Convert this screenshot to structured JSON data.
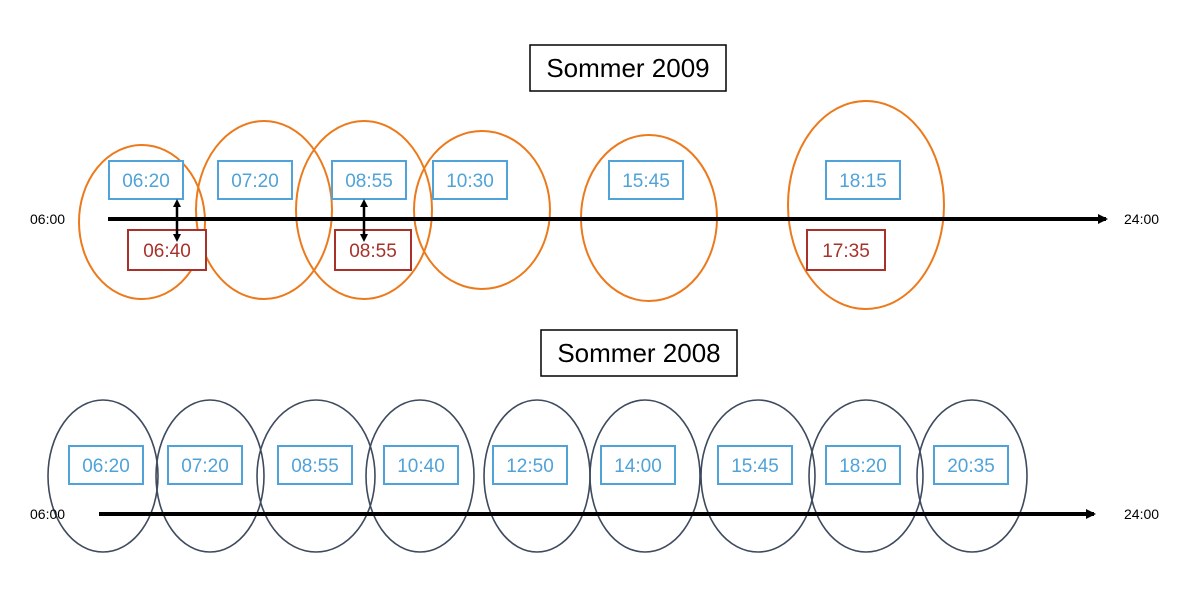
{
  "colors": {
    "orange_ellipse": "#ec7a1c",
    "navy_ellipse": "#3e4a5e",
    "blue_box": "#4fa3d9",
    "red_box": "#a8322a",
    "axis": "#000000"
  },
  "icons": {
    "axis_arrow": "arrow-right-icon",
    "link_arrow": "double-arrow-vertical-icon"
  },
  "timeline_2009": {
    "title": "Sommer 2009",
    "start_label": "06:00",
    "end_label": "24:00",
    "scheduled": [
      "06:20",
      "07:20",
      "08:55",
      "10:30",
      "15:45",
      "18:15"
    ],
    "actual": [
      "06:40",
      "08:55",
      "17:35"
    ]
  },
  "timeline_2008": {
    "title": "Sommer 2008",
    "start_label": "06:00",
    "end_label": "24:00",
    "scheduled": [
      "06:20",
      "07:20",
      "08:55",
      "10:40",
      "12:50",
      "14:00",
      "15:45",
      "18:20",
      "20:35"
    ]
  }
}
